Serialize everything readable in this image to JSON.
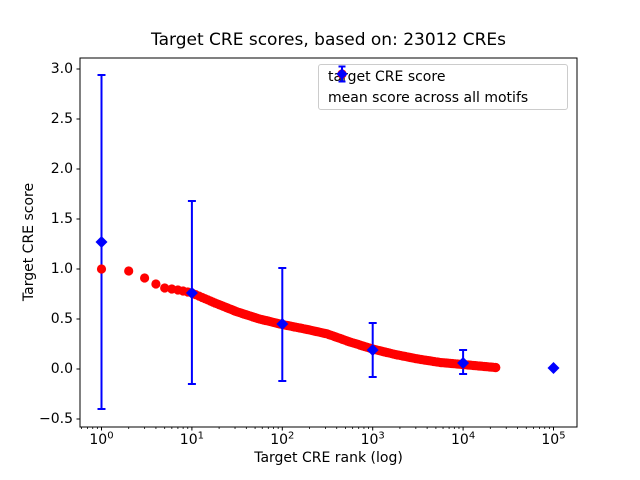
{
  "chart_data": {
    "type": "scatter",
    "title": "Target CRE scores, based on: 23012 CREs",
    "xlabel": "Target CRE rank (log)",
    "ylabel": "Target CRE score",
    "x_scale": "log",
    "grid": false,
    "xlim_log10": [
      -0.238,
      5.26
    ],
    "ylim": [
      -0.58,
      3.11
    ],
    "x_ticks": [
      {
        "v": 1,
        "exp": 0
      },
      {
        "v": 10,
        "exp": 1
      },
      {
        "v": 100,
        "exp": 2
      },
      {
        "v": 1000,
        "exp": 3
      },
      {
        "v": 10000,
        "exp": 4
      },
      {
        "v": 100000,
        "exp": 5
      }
    ],
    "y_ticks": [
      {
        "v": -0.5,
        "label": "−0.5"
      },
      {
        "v": 0.0,
        "label": "0.0"
      },
      {
        "v": 0.5,
        "label": "0.5"
      },
      {
        "v": 1.0,
        "label": "1.0"
      },
      {
        "v": 1.5,
        "label": "1.5"
      },
      {
        "v": 2.0,
        "label": "2.0"
      },
      {
        "v": 2.5,
        "label": "2.5"
      },
      {
        "v": 3.0,
        "label": "3.0"
      }
    ],
    "legend": {
      "position": "upper right",
      "entries": [
        {
          "label": "target CRE score",
          "marker": "circle",
          "color": "#ff0000"
        },
        {
          "label": "mean score across all motifs",
          "marker": "diamond-errorbar",
          "color": "#0000ff"
        }
      ]
    },
    "series": [
      {
        "name": "target CRE score",
        "type": "scatter",
        "marker": "circle",
        "color": "#ff0000",
        "n_points": 23012,
        "control_points": [
          [
            1,
            1.0
          ],
          [
            2,
            0.98
          ],
          [
            3,
            0.91
          ],
          [
            4,
            0.85
          ],
          [
            5,
            0.81
          ],
          [
            6,
            0.8
          ],
          [
            7,
            0.79
          ],
          [
            8,
            0.78
          ],
          [
            9,
            0.77
          ],
          [
            10,
            0.76
          ],
          [
            18,
            0.66
          ],
          [
            32,
            0.57
          ],
          [
            56,
            0.5
          ],
          [
            100,
            0.445
          ],
          [
            178,
            0.4
          ],
          [
            316,
            0.35
          ],
          [
            562,
            0.27
          ],
          [
            1000,
            0.2
          ],
          [
            1778,
            0.145
          ],
          [
            3162,
            0.1
          ],
          [
            5623,
            0.065
          ],
          [
            10000,
            0.045
          ],
          [
            23012,
            0.015
          ]
        ]
      },
      {
        "name": "mean score across all motifs",
        "type": "errorbar",
        "marker": "diamond",
        "color": "#0000ff",
        "points": [
          {
            "x": 1,
            "y": 1.27,
            "ylo": -0.4,
            "yhi": 2.94
          },
          {
            "x": 10,
            "y": 0.76,
            "ylo": -0.15,
            "yhi": 1.68
          },
          {
            "x": 100,
            "y": 0.45,
            "ylo": -0.12,
            "yhi": 1.01
          },
          {
            "x": 1000,
            "y": 0.19,
            "ylo": -0.08,
            "yhi": 0.46
          },
          {
            "x": 10000,
            "y": 0.06,
            "ylo": -0.05,
            "yhi": 0.19
          },
          {
            "x": 100000,
            "y": 0.01,
            "ylo": null,
            "yhi": null
          }
        ]
      }
    ]
  }
}
